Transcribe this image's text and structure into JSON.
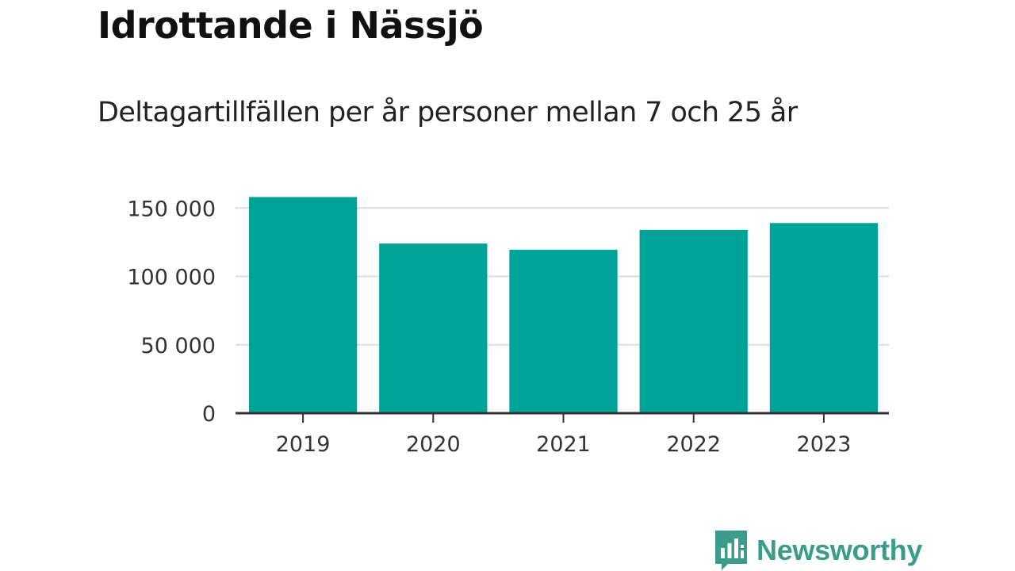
{
  "header": {
    "title": "Idrottande i Nässjö",
    "subtitle": "Deltagartillfällen per år personer mellan 7 och 25 år"
  },
  "brand": {
    "name": "Newsworthy",
    "color": "#3b9c8c",
    "icon": "bar-chart-speech-bubble-icon"
  },
  "chart_data": {
    "type": "bar",
    "categories": [
      "2019",
      "2020",
      "2021",
      "2022",
      "2023"
    ],
    "values": [
      158000,
      124000,
      119500,
      134000,
      139000
    ],
    "title": "Idrottande i Nässjö",
    "subtitle": "Deltagartillfällen per år personer mellan 7 och 25 år",
    "xlabel": "",
    "ylabel": "",
    "ylim": [
      0,
      160000
    ],
    "yticks": [
      0,
      50000,
      100000,
      150000
    ],
    "ytick_labels": [
      "0",
      "50 000",
      "100 000",
      "150 000"
    ],
    "grid": true,
    "legend": "none",
    "bar_color": "#00a398",
    "grid_color": "#dddddd",
    "axis_color": "#333333"
  }
}
